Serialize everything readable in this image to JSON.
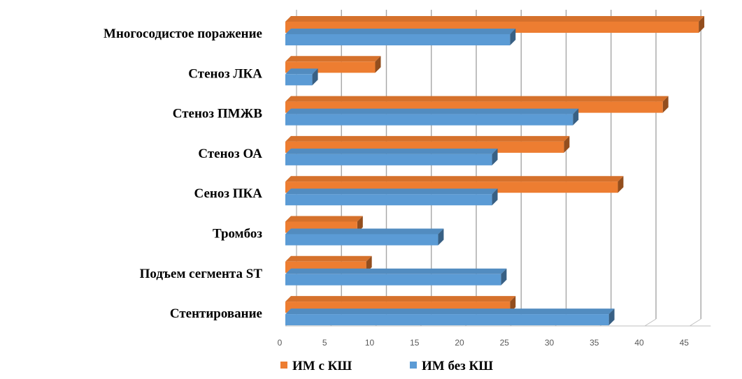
{
  "chart_data": {
    "type": "bar",
    "orientation": "horizontal",
    "style": "3d",
    "categories": [
      "Многосодистое поражение",
      "Стеноз ЛКА",
      "Стеноз ПМЖВ",
      "Стеноз ОА",
      "Сеноз ПКА",
      "Тромбоз",
      "Подъем сегмента ST",
      "Стентирование"
    ],
    "series": [
      {
        "name": "ИМ с КШ",
        "color": "#ED7D31",
        "values": [
          46,
          10,
          42,
          31,
          37,
          8,
          9,
          25
        ]
      },
      {
        "name": "ИМ без КШ",
        "color": "#5B9BD5",
        "values": [
          25,
          3,
          32,
          23,
          23,
          17,
          24,
          36
        ]
      }
    ],
    "xlim": [
      0,
      45
    ],
    "xticks": [
      0,
      5,
      10,
      15,
      20,
      25,
      30,
      35,
      40,
      45
    ],
    "grid": true,
    "legend_position": "bottom"
  }
}
